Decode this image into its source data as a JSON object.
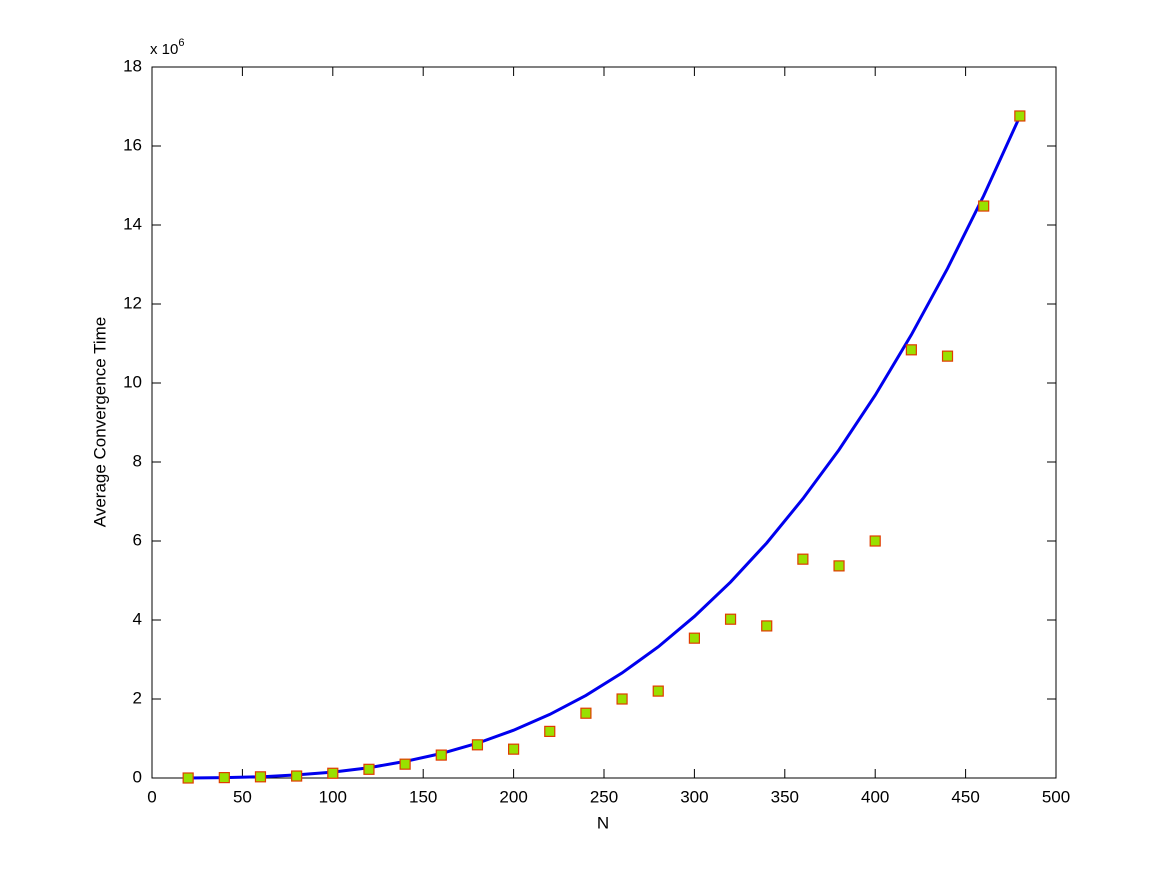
{
  "chart_data": {
    "type": "scatter",
    "xlabel": "N",
    "ylabel": "Average Convergence Time",
    "yaxis_multiplier": {
      "base": "x 10",
      "exponent": "6"
    },
    "xlim": [
      0,
      500
    ],
    "xticks": [
      0,
      50,
      100,
      150,
      200,
      250,
      300,
      350,
      400,
      450,
      500
    ],
    "ylim": [
      0,
      18
    ],
    "yticks": [
      0,
      2,
      4,
      6,
      8,
      10,
      12,
      14,
      16,
      18
    ],
    "grid": false,
    "series": [
      {
        "type": "line",
        "color": "#0000ee",
        "x": [
          20,
          40,
          60,
          80,
          100,
          120,
          140,
          160,
          180,
          200,
          220,
          240,
          260,
          280,
          300,
          320,
          340,
          360,
          380,
          400,
          420,
          440,
          460,
          480
        ],
        "values": [
          0.0,
          0.01,
          0.03,
          0.08,
          0.15,
          0.26,
          0.42,
          0.62,
          0.88,
          1.21,
          1.61,
          2.09,
          2.66,
          3.32,
          4.09,
          4.96,
          5.95,
          7.07,
          8.31,
          9.69,
          11.22,
          12.9,
          14.74,
          16.75
        ]
      },
      {
        "type": "scatter",
        "color": "#99e000",
        "edgecolor": "#e03c00",
        "x": [
          20,
          40,
          60,
          80,
          100,
          120,
          140,
          160,
          180,
          200,
          220,
          240,
          260,
          280,
          300,
          320,
          340,
          360,
          380,
          400,
          420,
          440,
          460,
          480
        ],
        "values": [
          0.0,
          0.01,
          0.03,
          0.05,
          0.12,
          0.22,
          0.35,
          0.58,
          0.84,
          0.73,
          1.18,
          1.64,
          2.0,
          2.2,
          3.54,
          4.02,
          3.85,
          5.54,
          5.37,
          6.0,
          10.84,
          10.68,
          14.48,
          16.76
        ]
      }
    ]
  }
}
